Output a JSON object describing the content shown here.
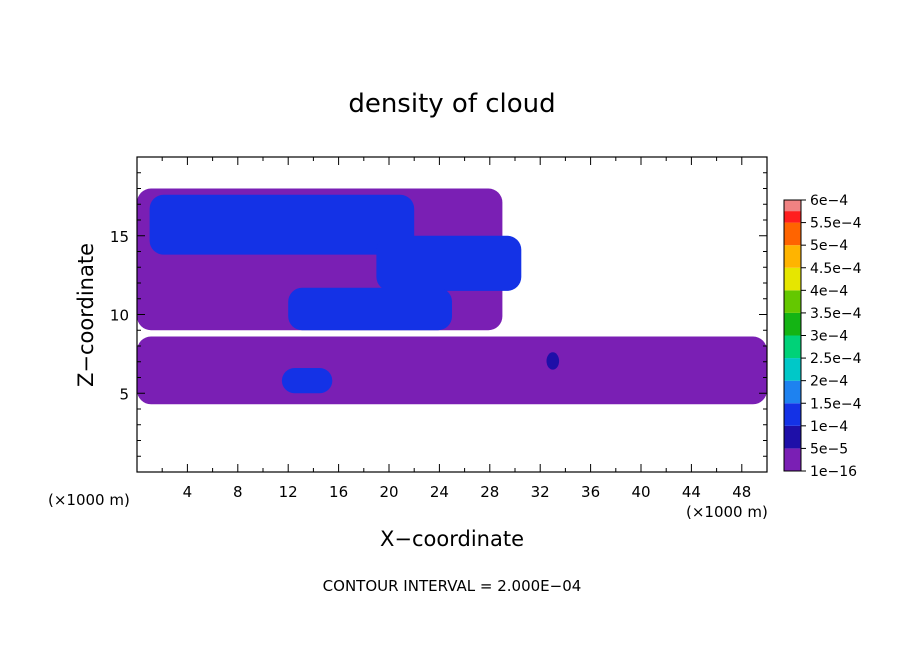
{
  "chart_data": {
    "type": "heatmap",
    "title": "density of cloud",
    "xlabel": "X−coordinate",
    "ylabel": "Z−coordinate",
    "x_unit_label": "(×1000 m)",
    "z_unit_label": "(×1000 m)",
    "xlim": [
      0,
      50
    ],
    "ylim": [
      0,
      20
    ],
    "x_ticks": [
      4,
      8,
      12,
      16,
      20,
      24,
      28,
      32,
      36,
      40,
      44,
      48
    ],
    "x_tick_labels": [
      "4",
      "8",
      "12",
      "16",
      "20",
      "24",
      "28",
      "32",
      "36",
      "40",
      "44",
      "48"
    ],
    "y_ticks": [
      5,
      10,
      15
    ],
    "y_tick_labels": [
      "5",
      "10",
      "15"
    ],
    "footer": "CONTOUR INTERVAL = 2.000E−04",
    "colorbar": {
      "levels": [
        "1e−16",
        "5e−5",
        "1e−4",
        "1.5e−4",
        "2e−4",
        "2.5e−4",
        "3e−4",
        "3.5e−4",
        "4e−4",
        "4.5e−4",
        "5e−4",
        "5.5e−4",
        "6e−4"
      ],
      "colors": [
        "#7a1fb4",
        "#1e0fa8",
        "#1432e6",
        "#1e82f0",
        "#00c8c8",
        "#00d278",
        "#14b414",
        "#64c800",
        "#e6e600",
        "#ffb400",
        "#ff6400",
        "#ff1e1e",
        "#f08282"
      ]
    },
    "regions": [
      {
        "name": "cloud-band-lower",
        "level": "1e−16",
        "x": [
          0,
          50
        ],
        "z": [
          4.3,
          8.6
        ]
      },
      {
        "name": "cloud-band-upper",
        "level": "1e−16",
        "x": [
          0,
          29
        ],
        "z": [
          9,
          18
        ]
      },
      {
        "name": "core-upper-left",
        "level": "1e−4",
        "x": [
          1,
          22
        ],
        "z": [
          13.8,
          17.6
        ]
      },
      {
        "name": "core-upper-right",
        "level": "1e−4",
        "x": [
          19,
          30.5
        ],
        "z": [
          11.5,
          15
        ]
      },
      {
        "name": "core-mid",
        "level": "1e−4",
        "x": [
          12,
          25
        ],
        "z": [
          9,
          11.7
        ]
      },
      {
        "name": "core-low",
        "level": "1e−4",
        "x": [
          11.5,
          15.5
        ],
        "z": [
          5,
          6.6
        ]
      },
      {
        "name": "core-small",
        "level": "5e−5",
        "x": [
          32.5,
          33.5
        ],
        "z": [
          6.5,
          7.6
        ]
      }
    ]
  }
}
